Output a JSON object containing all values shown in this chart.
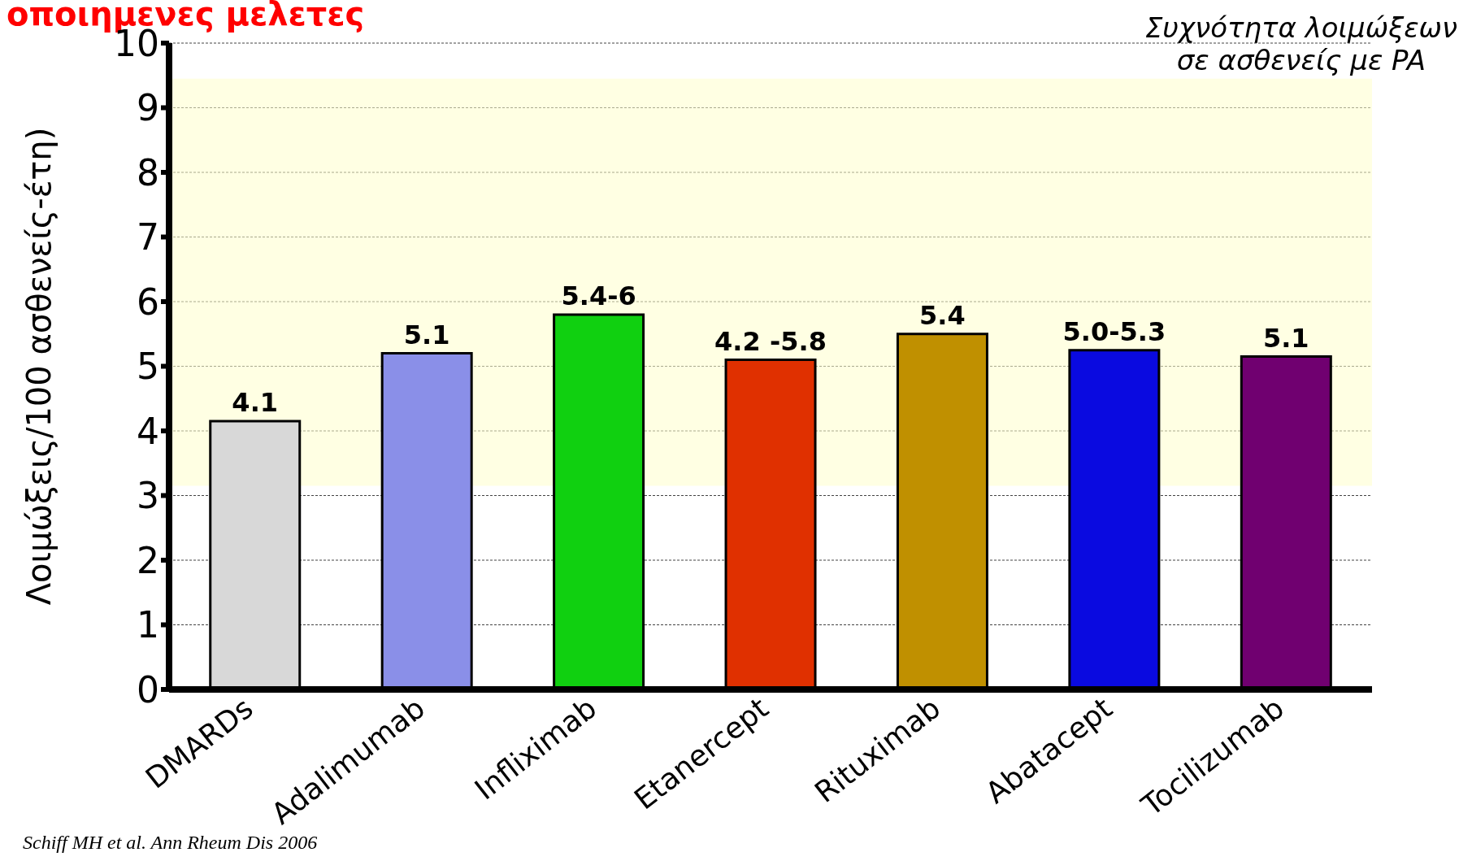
{
  "chart_data": {
    "type": "bar",
    "title": "Συχνότητα λοιμώξεων\nσε ασθενείς με PA",
    "subtitle": "οποιημενες μελετες",
    "ylabel": "Λοιμώξεις/100 ασθενείς-έτη)",
    "categories": [
      "DMARDs",
      "Adalimumab",
      "Infliximab",
      "Etanercept",
      "Rituximab",
      "Abatacept",
      "Tocilizumab"
    ],
    "values": [
      4.15,
      5.2,
      5.8,
      5.1,
      5.5,
      5.25,
      5.15
    ],
    "colors": [
      "#d8d8d8",
      "#8a8fe8",
      "#10d010",
      "#e03000",
      "#c09000",
      "#0a0ae0",
      "#700070"
    ],
    "ylim": [
      0,
      10
    ],
    "yticks": [
      0,
      1,
      2,
      3,
      4,
      5,
      6,
      7,
      8,
      9,
      10
    ],
    "grid": "y",
    "bands": [
      {
        "axis": "y",
        "from": 3.15,
        "to": 9.45,
        "color": "#ffffcc"
      }
    ],
    "annotations": [
      "Schiff MH et al. Ann Rheum Dis 2006",
      {
        "text": "4.1",
        "x": "DMARDs",
        "y": 4.15
      },
      {
        "text": "5.1",
        "x": "Adalimumab",
        "y": 5.2
      },
      {
        "text": "5.4-6",
        "x": "Infliximab",
        "y": 5.8
      },
      {
        "text": "4.2 -5.8",
        "x": "Etanercept",
        "y": 5.1
      },
      {
        "text": "5.4",
        "x": "Rituximab",
        "y": 5.5
      },
      {
        "text": "5.0-5.3",
        "x": "Abatacept",
        "y": 5.25
      },
      {
        "text": "5.1",
        "x": "Tocilizumab",
        "y": 5.15
      }
    ]
  }
}
